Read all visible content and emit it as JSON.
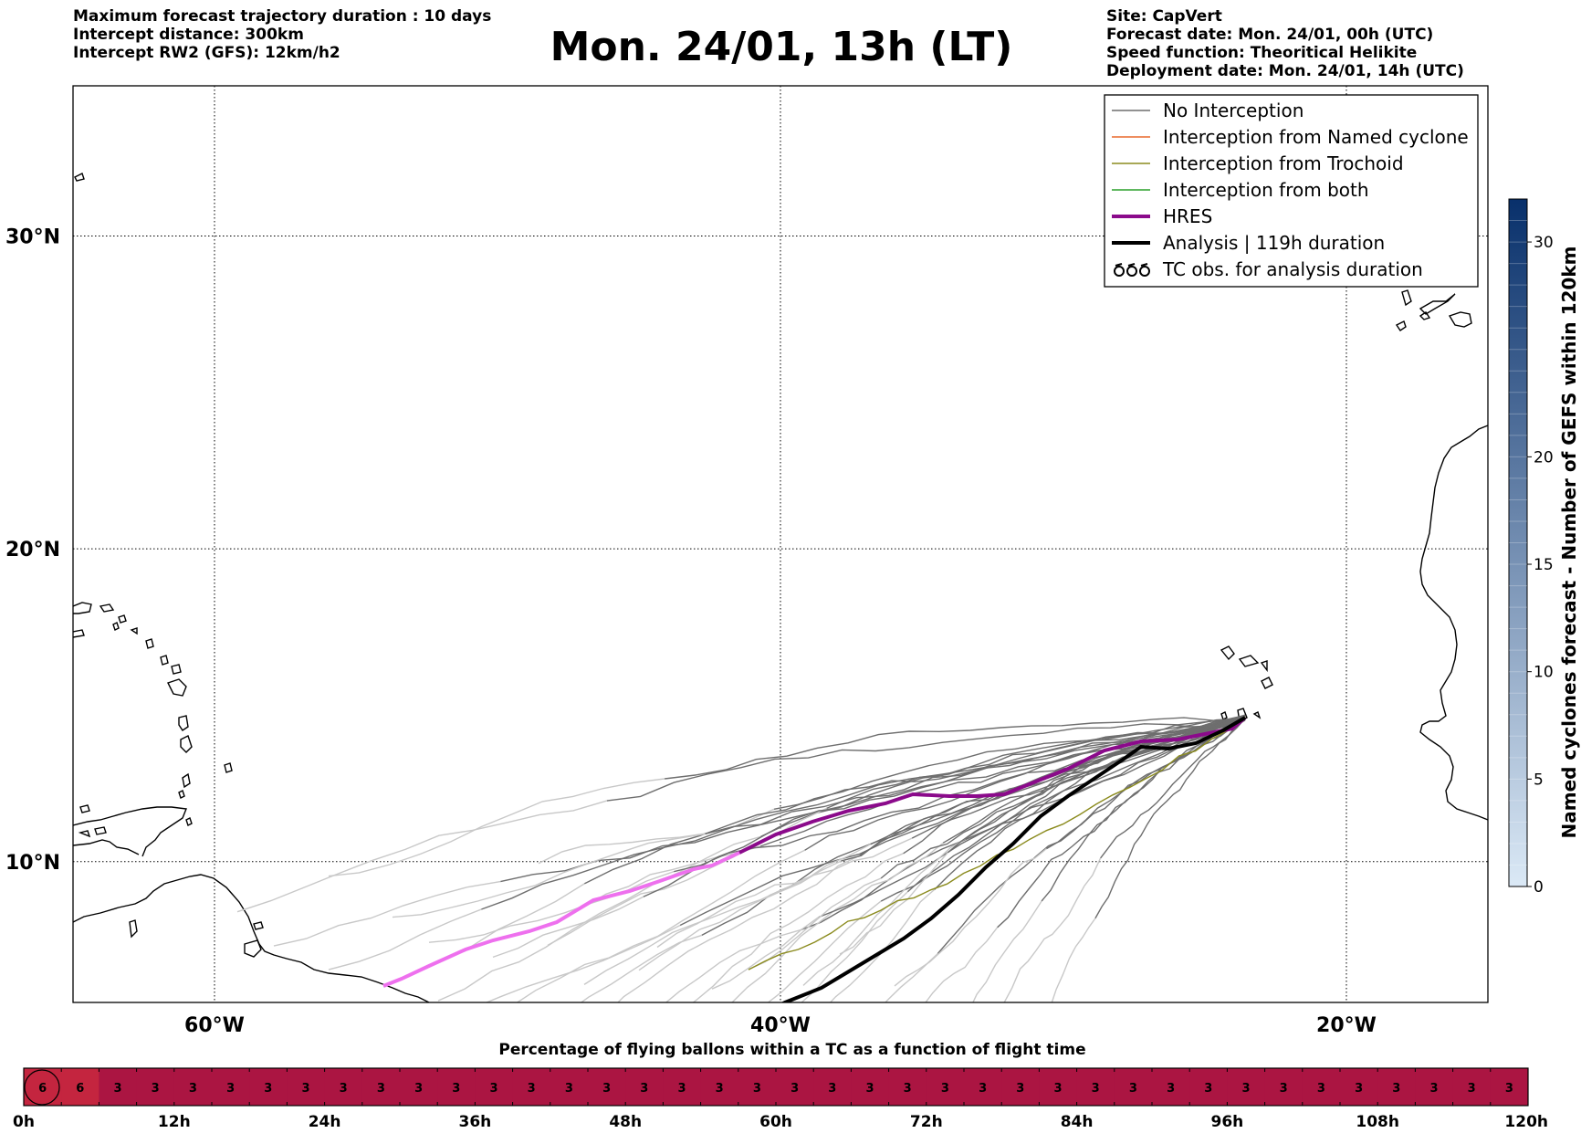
{
  "header": {
    "left_lines": [
      "Maximum forecast trajectory duration : 10 days",
      "Intercept distance: 300km",
      "Intercept RW2 (GFS):  12km/h2"
    ],
    "title": "Mon. 24/01, 13h (LT)",
    "right_lines": [
      "Site: CapVert",
      "Forecast date: Mon. 24/01, 00h (UTC)",
      "Speed function: Theoritical Helikite",
      "Deployment date: Mon. 24/01, 14h (UTC)"
    ]
  },
  "map": {
    "lon_range": [
      -65,
      -15
    ],
    "lat_range": [
      5.5,
      34.8
    ],
    "lon_ticks": [
      {
        "value": -60,
        "label": "60°W"
      },
      {
        "value": -40,
        "label": "40°W"
      },
      {
        "value": -20,
        "label": "20°W"
      }
    ],
    "lat_ticks": [
      {
        "value": 30,
        "label": "30°N"
      },
      {
        "value": 20,
        "label": "20°N"
      },
      {
        "value": 10,
        "label": "10°N"
      }
    ],
    "grid": "dotted",
    "colors": {
      "no_interception": "#6e6e6e",
      "no_interception_faded": "#c8c8c8",
      "named_cyclone": "#e8692c",
      "trochoid": "#8b8b1e",
      "both": "#2ca02c",
      "hres": "#8b0a8b",
      "hres_faded": "#ee70ee",
      "analysis": "#000000",
      "coast": "#000000"
    }
  },
  "legend": {
    "placement": "top-right",
    "entries": [
      {
        "label": "No Interception",
        "style": "no"
      },
      {
        "label": "Interception from Named cyclone",
        "style": "named"
      },
      {
        "label": "Interception from Trochoid",
        "style": "troch"
      },
      {
        "label": "Interception from both",
        "style": "both"
      },
      {
        "label": "HRES",
        "style": "hres"
      },
      {
        "label": "Analysis | 119h duration",
        "style": "analysis"
      },
      {
        "label": "TC obs. for analysis duration",
        "style": "tc"
      }
    ]
  },
  "colorbar": {
    "label": "Named cyclones forecast - Number of GEFS within 120km",
    "range": [
      0,
      32
    ],
    "ticks": [
      0,
      5,
      10,
      15,
      20,
      30
    ],
    "color_low": "#dbe9f6",
    "color_high": "#08306b"
  },
  "timeline": {
    "title": "Percentage of flying ballons within a TC as a function of flight time",
    "hours_range": [
      0,
      120
    ],
    "tick_labels": [
      "0h",
      "12h",
      "24h",
      "36h",
      "48h",
      "60h",
      "72h",
      "84h",
      "96h",
      "108h",
      "120h"
    ],
    "cell_values": [
      6,
      6,
      3,
      3,
      3,
      3,
      3,
      3,
      3,
      3,
      3,
      3,
      3,
      3,
      3,
      3,
      3,
      3,
      3,
      3,
      3,
      3,
      3,
      3,
      3,
      3,
      3,
      3,
      3,
      3,
      3,
      3,
      3,
      3,
      3,
      3,
      3,
      3,
      3,
      3
    ],
    "color_high": "#c4253f",
    "color_low": "#ab1542"
  }
}
